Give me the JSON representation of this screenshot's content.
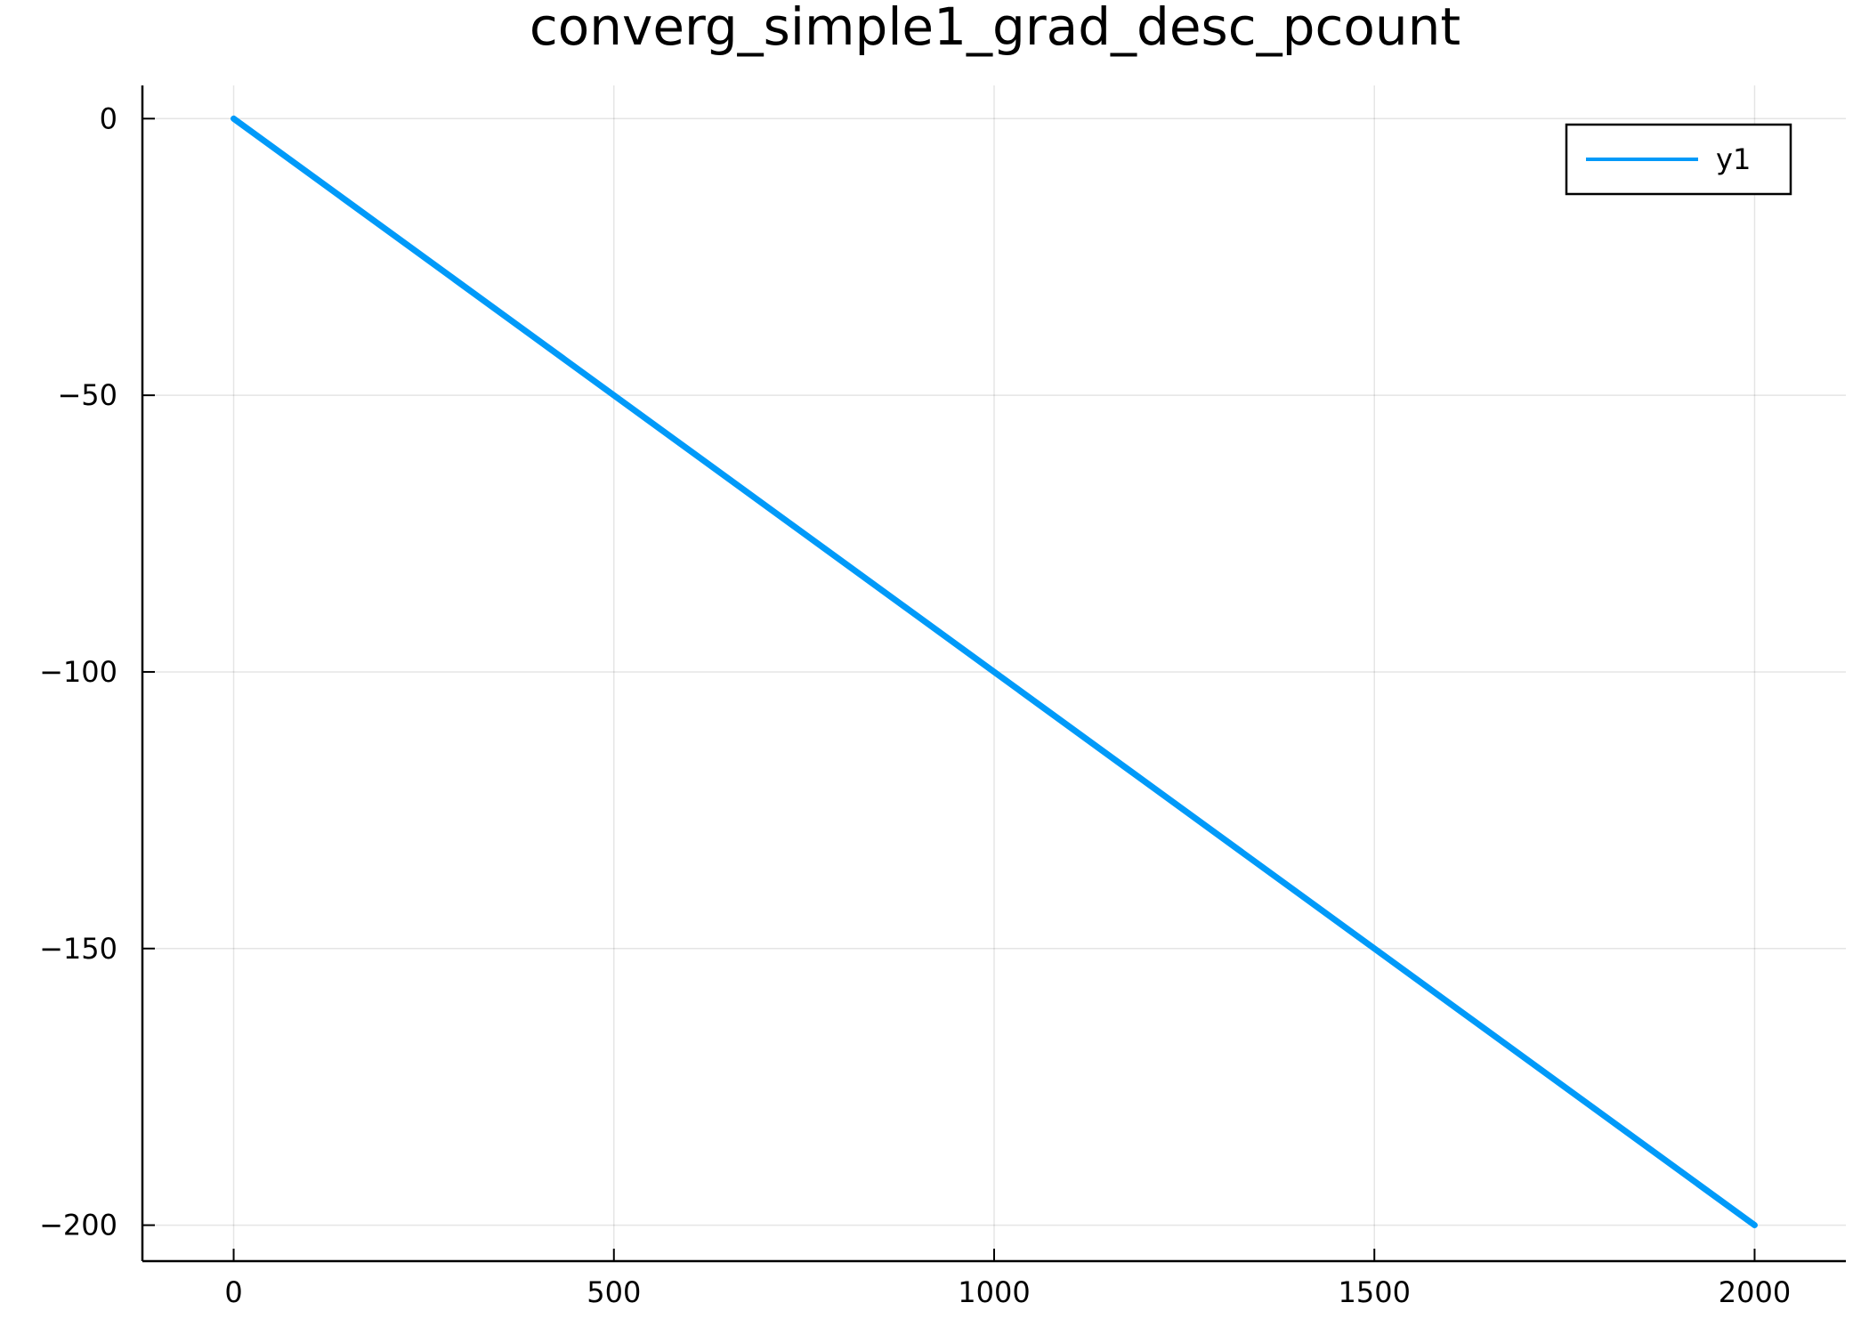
{
  "chart_data": {
    "type": "line",
    "title": "converg_simple1_grad_desc_pcount",
    "xlabel": "",
    "ylabel": "",
    "xlim": [
      -120,
      2120
    ],
    "ylim": [
      -206.5,
      6
    ],
    "x_ticks": [
      0,
      500,
      1000,
      1500,
      2000
    ],
    "x_tick_labels": [
      "0",
      "500",
      "1000",
      "1500",
      "2000"
    ],
    "y_ticks": [
      0,
      -50,
      -100,
      -150,
      -200
    ],
    "y_tick_labels": [
      "0",
      "−50",
      "−100",
      "−150",
      "−200"
    ],
    "grid": true,
    "legend_position": "top-right",
    "series": [
      {
        "name": "y1",
        "color": "#009af9",
        "x": [
          0,
          2000
        ],
        "y": [
          0,
          -200
        ]
      }
    ]
  }
}
